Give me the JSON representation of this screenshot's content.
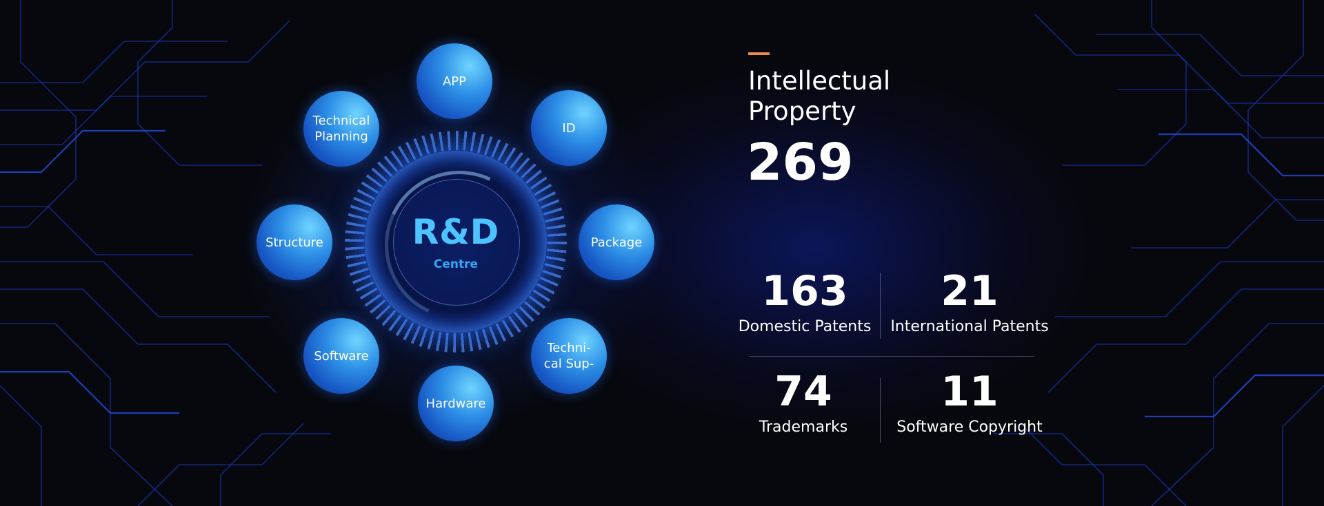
{
  "hub": {
    "title": "R&D",
    "subtitle": "Centre"
  },
  "nodes": [
    {
      "id": "app",
      "label": "APP"
    },
    {
      "id": "id",
      "label": "ID"
    },
    {
      "id": "package",
      "label": "Package"
    },
    {
      "id": "technical-support",
      "label": "Techni-\ncal Sup-"
    },
    {
      "id": "hardware",
      "label": "Hardware"
    },
    {
      "id": "software",
      "label": "Software"
    },
    {
      "id": "structure",
      "label": "Structure"
    },
    {
      "id": "technical-planning",
      "label": "Technical\nPlanning"
    }
  ],
  "ip": {
    "title": "Intellectual Property",
    "total": "269",
    "stats": [
      {
        "value": "163",
        "label": "Domestic Patents"
      },
      {
        "value": "21",
        "label": "International Patents"
      },
      {
        "value": "74",
        "label": "Trademarks"
      },
      {
        "value": "11",
        "label": "Software Copyright"
      }
    ]
  },
  "colors": {
    "accent": "#f08a45",
    "node": "#2d8fe6",
    "hub_text": "#4dc3ff",
    "background": "#07080d"
  }
}
